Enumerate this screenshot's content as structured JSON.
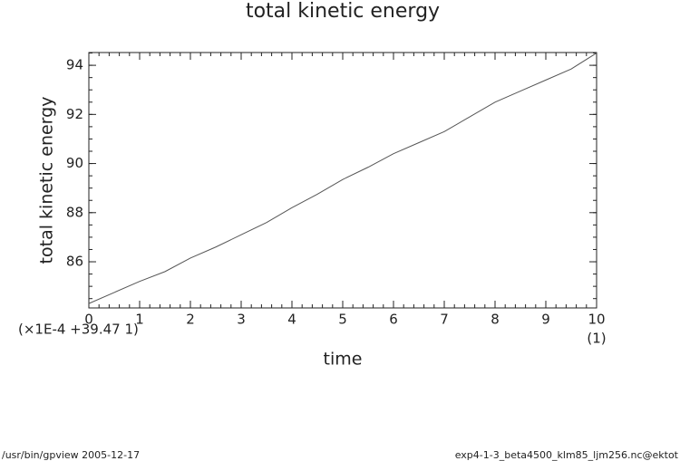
{
  "chart_data": {
    "type": "line",
    "title": "total kinetic energy",
    "x_label": "time",
    "y_label": "total kinetic energy",
    "y_offset_note": "(×1E-4 +39.47 1)",
    "x_unit": "(1)",
    "footer_left": "/usr/bin/gpview  2005-12-17",
    "footer_right": "exp4-1-3_beta4500_klm85_ljm256.nc@ektot",
    "x": [
      0,
      0.5,
      1,
      1.5,
      2,
      2.5,
      3,
      3.5,
      4,
      4.5,
      5,
      5.5,
      6,
      6.5,
      7,
      7.5,
      8,
      8.5,
      9,
      9.5,
      10
    ],
    "series": [
      {
        "name": "total kinetic energy",
        "color": "#555555",
        "values": [
          84.3,
          84.75,
          85.2,
          85.6,
          86.15,
          86.6,
          87.1,
          87.6,
          88.2,
          88.75,
          89.35,
          89.85,
          90.4,
          90.85,
          91.3,
          91.9,
          92.5,
          92.95,
          93.4,
          93.85,
          94.5
        ]
      }
    ],
    "xlim": [
      0,
      10
    ],
    "ylim": [
      84.12,
      94.52
    ],
    "xticks": [
      0,
      1,
      2,
      3,
      4,
      5,
      6,
      7,
      8,
      9,
      10
    ],
    "yticks": [
      86,
      88,
      90,
      92,
      94
    ],
    "grid": false
  }
}
